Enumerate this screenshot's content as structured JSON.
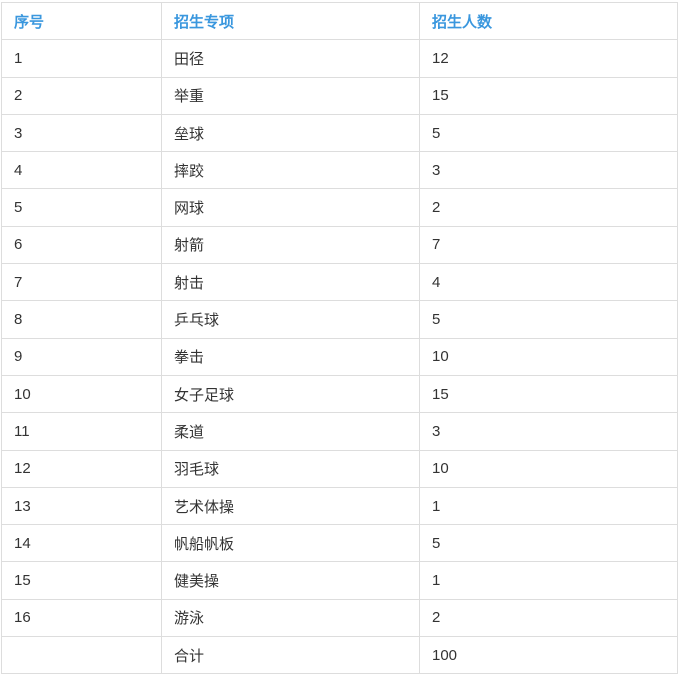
{
  "table": {
    "columns": [
      {
        "key": "index",
        "label": "序号"
      },
      {
        "key": "specialty",
        "label": "招生专项"
      },
      {
        "key": "count",
        "label": "招生人数"
      }
    ],
    "rows": [
      [
        "1",
        "田径",
        "12"
      ],
      [
        "2",
        "举重",
        "15"
      ],
      [
        "3",
        "垒球",
        "5"
      ],
      [
        "4",
        "摔跤",
        "3"
      ],
      [
        "5",
        "网球",
        "2"
      ],
      [
        "6",
        "射箭",
        "7"
      ],
      [
        "7",
        "射击",
        "4"
      ],
      [
        "8",
        "乒乓球",
        "5"
      ],
      [
        "9",
        "拳击",
        "10"
      ],
      [
        "10",
        "女子足球",
        "15"
      ],
      [
        "11",
        "柔道",
        "3"
      ],
      [
        "12",
        "羽毛球",
        "10"
      ],
      [
        "13",
        "艺术体操",
        "1"
      ],
      [
        "14",
        "帆船帆板",
        "5"
      ],
      [
        "15",
        "健美操",
        "1"
      ],
      [
        "16",
        "游泳",
        "2"
      ]
    ],
    "footer": [
      "",
      "合计",
      "100"
    ]
  },
  "colors": {
    "header_text": "#3a97de",
    "border": "#dddddd",
    "body_text": "#333333",
    "background": "#ffffff"
  }
}
